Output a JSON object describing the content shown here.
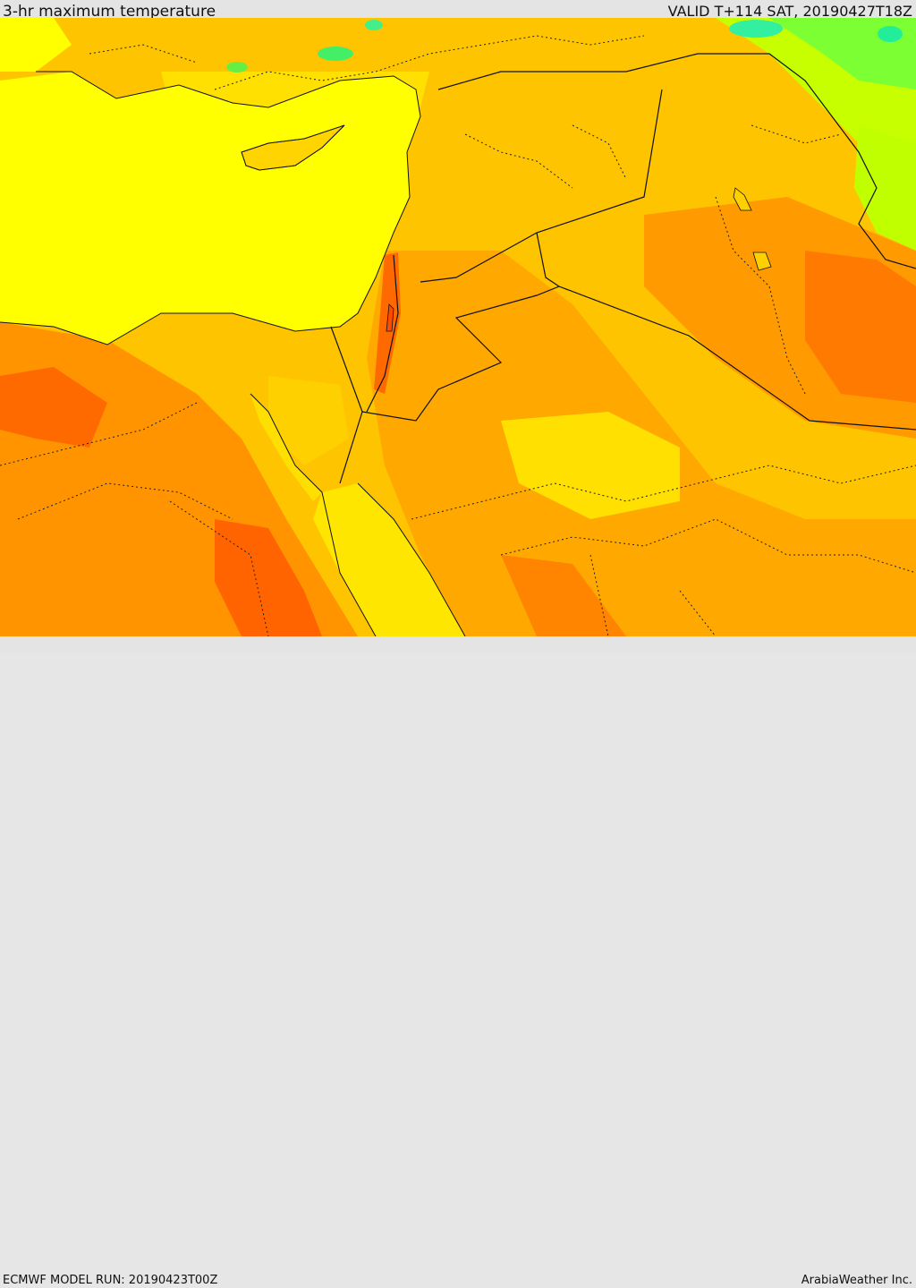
{
  "header": {
    "title": "3-hr maximum temperature",
    "valid_time": "VALID T+114 SAT, 20190427T18Z"
  },
  "footer": {
    "model_run": "ECMWF MODEL RUN: 20190423T00Z",
    "credit": "ArabiaWeather Inc."
  },
  "colors": {
    "sea": "#ffff00",
    "warm": "#ffd700",
    "warmer": "#ffb800",
    "hot": "#ff8a00",
    "hottest": "#ff5a00",
    "cool": "#aaff00",
    "cold": "#33ff88",
    "border": "#111111"
  }
}
